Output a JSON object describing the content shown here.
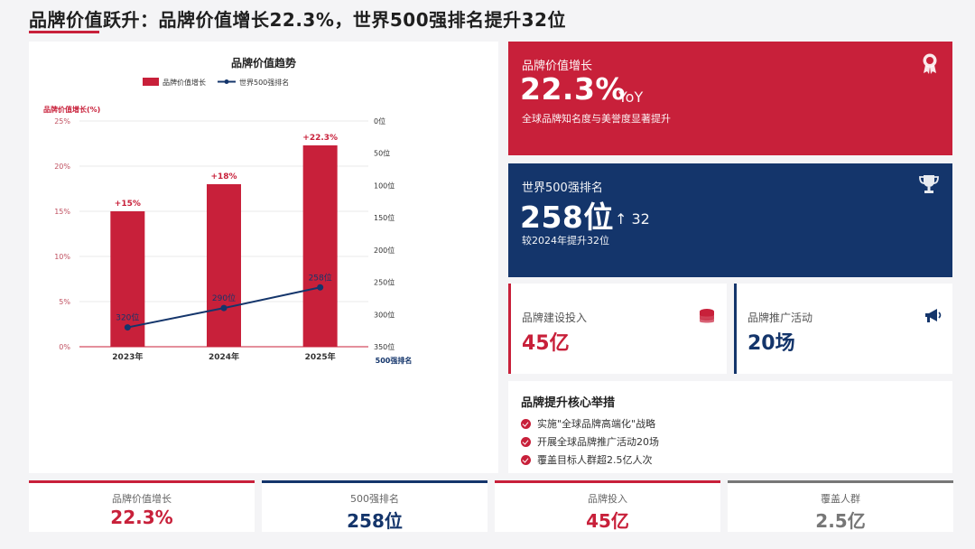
{
  "page": {
    "title": "品牌价值跃升：品牌价值增长22.3%，世界500强排名提升32位"
  },
  "chart_data": {
    "type": "bar",
    "title": "品牌价值趋势",
    "categories": [
      "2023年",
      "2024年",
      "2025年"
    ],
    "series": [
      {
        "name": "品牌价值增长",
        "values": [
          15,
          18,
          22.3
        ],
        "labels": [
          "+15%",
          "+18%",
          "+22.3%"
        ],
        "color": "#c8203a",
        "axis": "left"
      },
      {
        "name": "世界500强排名",
        "type": "line",
        "values": [
          320,
          290,
          258
        ],
        "labels": [
          "320位",
          "290位",
          "258位"
        ],
        "color": "#14356b",
        "axis": "right"
      }
    ],
    "ylabel": "品牌价值增长(%)",
    "ylim": [
      0,
      25
    ],
    "y_ticks": [
      "0%",
      "5%",
      "10%",
      "15%",
      "20%",
      "25%"
    ],
    "y2label": "500强排名",
    "y2lim": [
      0,
      350
    ],
    "y2_inverted": true,
    "y2_ticks": [
      "0位",
      "50位",
      "100位",
      "150位",
      "200位",
      "250位",
      "300位",
      "350位"
    ],
    "grid": true,
    "legend": "top-center"
  },
  "cards": {
    "growth": {
      "label": "品牌价值增长",
      "value": "22.3%",
      "suffix": "YoY",
      "note": "全球品牌知名度与美誉度显著提升",
      "icon": "award-icon"
    },
    "ranking": {
      "label": "世界500强排名",
      "value": "258位",
      "change": "↑ 32",
      "note": "较2024年提升32位",
      "icon": "trophy-icon"
    }
  },
  "metrics": {
    "investment": {
      "label": "品牌建设投入",
      "value": "45亿",
      "icon": "coins-icon"
    },
    "activities": {
      "label": "品牌推广活动",
      "value": "20场",
      "icon": "megaphone-icon"
    }
  },
  "measures": {
    "title": "品牌提升核心举措",
    "items": [
      "实施\"全球品牌高端化\"战略",
      "开展全球品牌推广活动20场",
      "覆盖目标人群超2.5亿人次"
    ]
  },
  "kpis": [
    {
      "label": "品牌价值增长",
      "value": "22.3%",
      "color": "#c8203a"
    },
    {
      "label": "500强排名",
      "value": "258位",
      "color": "#14356b"
    },
    {
      "label": "品牌投入",
      "value": "45亿",
      "color": "#c8203a"
    },
    {
      "label": "覆盖人群",
      "value": "2.5亿",
      "color": "#777777"
    }
  ],
  "colors": {
    "primary_red": "#c8203a",
    "primary_blue": "#14356b",
    "neutral_gray": "#777777",
    "background": "#f4f4f6"
  }
}
